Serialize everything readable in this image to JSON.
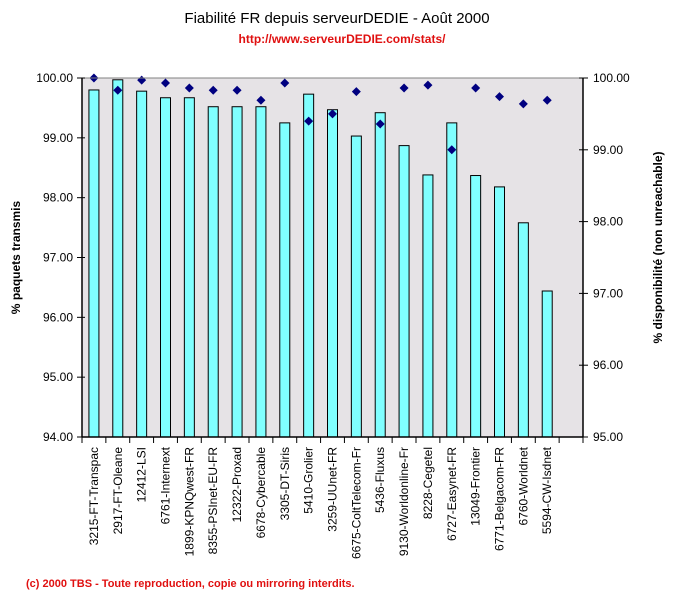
{
  "header": {
    "title": "Fiabilité FR depuis serveurDEDIE - Août 2000",
    "url": "http://www.serveurDEDIE.com/stats/"
  },
  "footer": {
    "copyright": "(c) 2000 TBS - Toute reproduction, copie ou mirroring interdits."
  },
  "chart_data": {
    "type": "bar",
    "title": "Fiabilité FR depuis serveurDEDIE - Août 2000",
    "subtitle": "http://www.serveurDEDIE.com/stats/",
    "xlabel": "",
    "ylabel": "% paquets transmis",
    "y2label": "% disponibilité (non unreachable)",
    "ylim": [
      94,
      100
    ],
    "y2lim": [
      95,
      100
    ],
    "yticks": [
      "94.00",
      "95.00",
      "96.00",
      "97.00",
      "98.00",
      "99.00",
      "100.00"
    ],
    "y2ticks": [
      "95.00",
      "96.00",
      "97.00",
      "98.00",
      "99.00",
      "100.00"
    ],
    "grid": false,
    "colors": {
      "bar": "#80ffff",
      "bar_edge": "#000000",
      "marker": "#000080",
      "plot_bg": "#e6e3e6"
    },
    "categories": [
      "3215-FT-Transpac",
      "2917-FT-Oleane",
      "12412-LSI",
      "6761-Internext",
      "1899-KPNQwest-FR",
      "8355-PSInet-EU-FR",
      "12322-Proxad",
      "6678-Cybercable",
      "3305-DT-Siris",
      "5410-Grolier",
      "3259-UUnet-FR",
      "6675-ColtTelecom-Fr",
      "5436-Fluxus",
      "9130-Worldonline-Fr",
      "8228-Cegetel",
      "6727-Easynet-FR",
      "13049-Frontier",
      "6771-Belgacom-FR",
      "6760-Worldnet",
      "5594-CW-Isdnet"
    ],
    "series": [
      {
        "name": "% paquets transmis",
        "type": "bar",
        "axis": "left",
        "values": [
          99.8,
          99.97,
          99.78,
          99.67,
          99.67,
          99.52,
          99.52,
          99.52,
          99.25,
          99.73,
          99.47,
          99.03,
          99.42,
          98.87,
          98.38,
          99.25,
          98.37,
          98.18,
          97.58,
          96.44
        ]
      },
      {
        "name": "% disponibilité (non unreachable)",
        "type": "scatter",
        "marker": "diamond",
        "axis": "right",
        "values": [
          100.0,
          99.83,
          99.97,
          99.93,
          99.86,
          99.83,
          99.83,
          99.69,
          99.93,
          99.4,
          99.5,
          99.81,
          99.36,
          99.86,
          99.9,
          99.0,
          99.86,
          99.74,
          99.64,
          99.69
        ]
      }
    ]
  }
}
